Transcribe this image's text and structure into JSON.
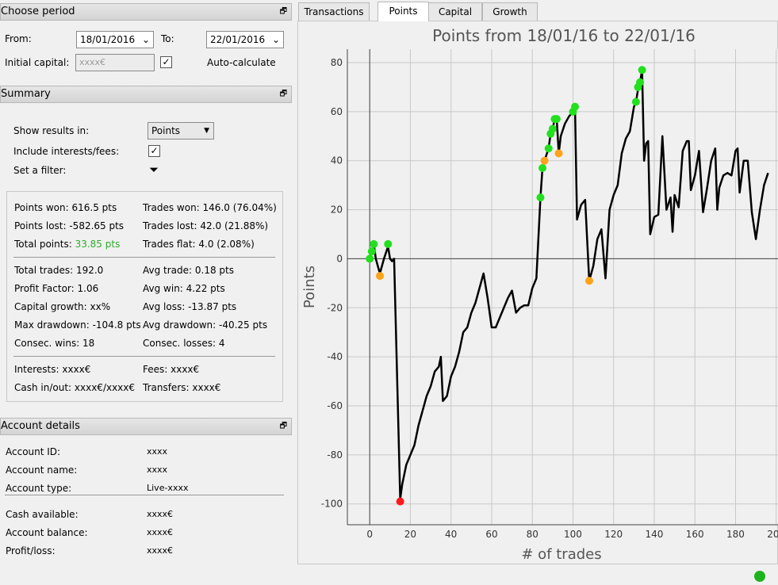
{
  "period": {
    "title": "Choose period",
    "from_label": "From:",
    "from": "18/01/2016",
    "to_label": "To:",
    "to": "22/01/2016",
    "capital_label": "Initial capital:",
    "capital": "xxxx€",
    "auto_label": "Auto-calculate"
  },
  "summary": {
    "title": "Summary",
    "show_label": "Show results in:",
    "show": "Points",
    "include_label": "Include interests/fees:",
    "filter_label": "Set a filter:",
    "groups": [
      [
        [
          "Points won: 616.5 pts",
          "Trades won: 146.0 (76.04%)"
        ],
        [
          "Points lost: -582.65 pts",
          "Trades lost: 42.0 (21.88%)"
        ],
        [
          [
            "Total points:",
            "33.85 pts"
          ],
          "Trades flat: 4.0 (2.08%)"
        ]
      ],
      [
        [
          "Total trades: 192.0",
          "Avg trade: 0.18 pts"
        ],
        [
          "Profit Factor: 1.06",
          "Avg win: 4.22 pts"
        ],
        [
          "Capital growth: xx%",
          "Avg loss: -13.87 pts"
        ],
        [
          "Max drawdown: -104.8 pts",
          "Avg drawdown: -40.25 pts"
        ],
        [
          "Consec. wins: 18",
          "Consec. losses: 4"
        ]
      ],
      [
        [
          "Interests: xxxx€",
          "Fees: xxxx€"
        ],
        [
          "Cash in/out: xxxx€/xxxx€",
          "Transfers: xxxx€"
        ]
      ]
    ]
  },
  "account": {
    "title": "Account details",
    "groups": [
      [
        [
          "Account ID:",
          "xxxx"
        ],
        [
          "Account name:",
          "xxxx"
        ],
        [
          "Account type:",
          "Live-xxxx"
        ]
      ],
      [
        [
          "Cash available:",
          "xxxx€"
        ],
        [
          "Account balance:",
          "xxxx€"
        ],
        [
          "Profit/loss:",
          "xxxx€"
        ]
      ]
    ]
  },
  "tabs": [
    "Transactions",
    "Points",
    "Capital",
    "Growth"
  ],
  "chart_data": {
    "type": "line",
    "title": "Points from 18/01/16 to 22/01/16",
    "xlabel": "# of trades",
    "ylabel": "Points",
    "xlim": [
      -11,
      204
    ],
    "ylim": [
      -108.5,
      85.5
    ],
    "xticks": [
      0,
      20,
      40,
      60,
      80,
      100,
      120,
      140,
      160,
      180,
      200
    ],
    "yticks": [
      -100,
      -80,
      -60,
      -40,
      -20,
      0,
      20,
      40,
      60,
      80
    ],
    "grid": true,
    "series": [
      {
        "color": "#000000",
        "x": [
          0,
          1,
          2,
          3,
          5,
          7,
          9,
          10,
          11,
          12,
          15,
          16,
          18,
          20,
          22,
          24,
          26,
          28,
          30,
          32,
          34,
          35,
          36,
          38,
          40,
          42,
          44,
          46,
          48,
          50,
          52,
          54,
          56,
          58,
          60,
          62,
          64,
          66,
          68,
          70,
          72,
          74,
          76,
          78,
          80,
          82,
          84,
          85,
          86,
          88,
          89,
          90,
          91,
          92,
          93,
          94,
          96,
          98,
          100,
          101,
          102,
          104,
          106,
          108,
          110,
          112,
          114,
          116,
          118,
          120,
          122,
          124,
          126,
          128,
          130,
          131,
          132,
          133,
          134,
          135,
          136,
          137,
          138,
          140,
          142,
          144,
          146,
          148,
          149,
          150,
          152,
          154,
          156,
          157,
          158,
          160,
          162,
          164,
          166,
          168,
          170,
          171,
          172,
          174,
          176,
          178,
          180,
          181,
          182,
          184,
          186,
          188,
          190,
          192,
          194,
          196
        ],
        "values": [
          0,
          3,
          6,
          0,
          -6,
          0,
          5,
          0,
          -1,
          0,
          -98,
          -92,
          -84,
          -80,
          -76,
          -68,
          -62,
          -56,
          -52,
          -46,
          -44,
          -40,
          -58,
          -56,
          -48,
          -44,
          -38,
          -30,
          -28,
          -22,
          -18,
          -12,
          -6,
          -16,
          -28,
          -28,
          -24,
          -20,
          -16,
          -13,
          -22,
          -20,
          -19,
          -19,
          -12,
          -8,
          25,
          37,
          40,
          45,
          51,
          53,
          57,
          57,
          43,
          50,
          55,
          58,
          60,
          62,
          16,
          22,
          24,
          -9,
          -3,
          8,
          12,
          -8,
          20,
          26,
          30,
          43,
          49,
          52,
          62,
          64,
          69,
          72,
          77,
          40,
          47,
          48,
          10,
          17,
          18,
          50,
          20,
          25,
          11,
          26,
          21,
          44,
          48,
          48,
          28,
          34,
          44,
          19,
          29,
          40,
          45,
          20,
          29,
          34,
          35,
          34,
          44,
          45,
          27,
          40,
          40,
          19,
          8,
          20,
          30,
          35
        ]
      },
      {
        "color": "#22e01e",
        "x": [
          0,
          1,
          2,
          9,
          84,
          85,
          88,
          89,
          90,
          91,
          92,
          100,
          101,
          131,
          132,
          133,
          134
        ],
        "values": [
          0,
          3,
          6,
          6,
          25,
          37,
          45,
          51,
          53,
          57,
          57,
          60,
          62,
          64,
          70,
          72,
          77
        ]
      },
      {
        "color": "#ffa31a",
        "x": [
          5,
          86,
          93,
          108
        ],
        "values": [
          -7,
          40,
          43,
          -9
        ]
      },
      {
        "color": "#ff1a1a",
        "x": [
          15
        ],
        "values": [
          -99
        ]
      }
    ]
  }
}
